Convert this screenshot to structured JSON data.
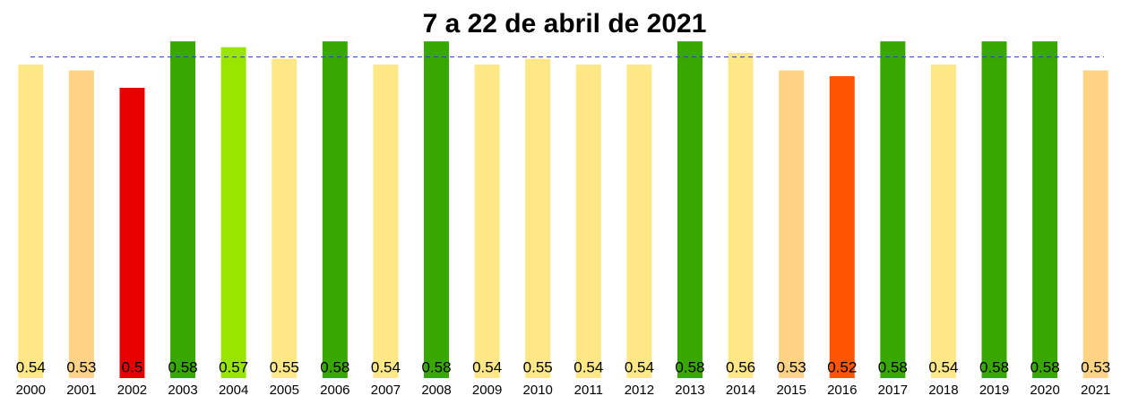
{
  "chart_data": {
    "type": "bar",
    "title": "7 a 22 de abril de 2021",
    "categories": [
      "2000",
      "2001",
      "2002",
      "2003",
      "2004",
      "2005",
      "2006",
      "2007",
      "2008",
      "2009",
      "2010",
      "2011",
      "2012",
      "2013",
      "2014",
      "2015",
      "2016",
      "2017",
      "2018",
      "2019",
      "2020",
      "2021"
    ],
    "values": [
      0.54,
      0.53,
      0.5,
      0.58,
      0.57,
      0.55,
      0.58,
      0.54,
      0.58,
      0.54,
      0.55,
      0.54,
      0.54,
      0.58,
      0.56,
      0.53,
      0.52,
      0.58,
      0.54,
      0.58,
      0.58,
      0.53
    ],
    "colors": [
      "#fee886",
      "#fed383",
      "#e60000",
      "#38a800",
      "#98e600",
      "#fee886",
      "#38a800",
      "#fee886",
      "#38a800",
      "#fee886",
      "#fee886",
      "#fee886",
      "#fee886",
      "#38a800",
      "#fee886",
      "#fed383",
      "#ff5500",
      "#38a800",
      "#fee886",
      "#38a800",
      "#38a800",
      "#fed383"
    ],
    "ylim": [
      0,
      0.6
    ],
    "reference_line": 0.553,
    "reference_color": "#3333cc"
  }
}
